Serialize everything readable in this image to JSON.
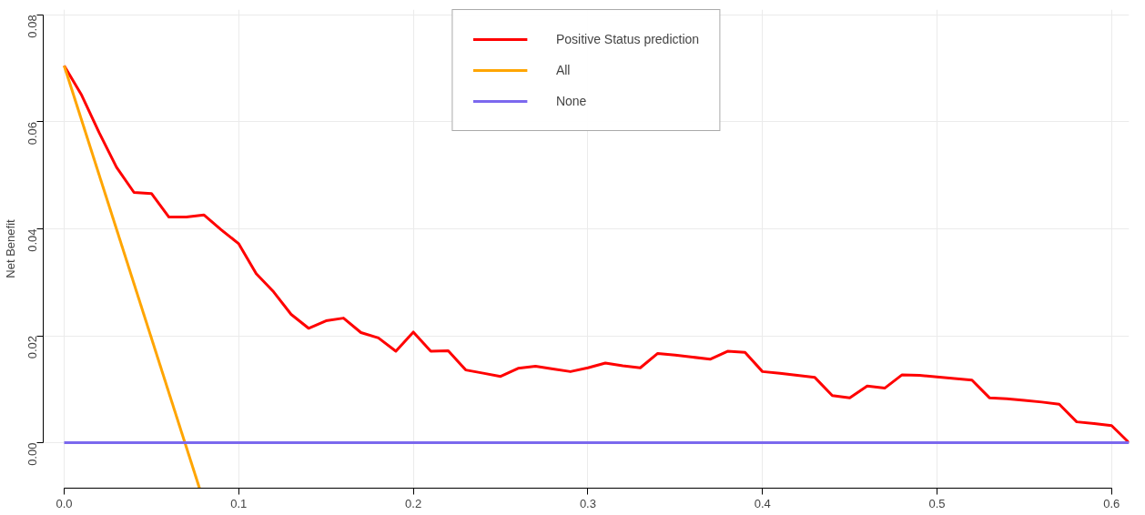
{
  "chart_data": {
    "type": "line",
    "ylabel": "Net Benefit",
    "xlim": [
      -0.012,
      0.61
    ],
    "ylim": [
      -0.0085,
      0.081
    ],
    "xticks": [
      {
        "value": 0,
        "label": "0.0"
      },
      0.1,
      0.2,
      0.3,
      0.4,
      0.5,
      0.6
    ],
    "yticks": [
      {
        "value": 0,
        "label": "0.00"
      },
      0.02,
      0.04,
      0.06,
      0.08
    ],
    "grid": true,
    "legend": "top",
    "line_style": "solid",
    "marker": "none",
    "series": [
      {
        "name": "Positive Status prediction",
        "color": "#ff0000",
        "x": [
          0,
          0.01,
          0.02,
          0.03,
          0.04,
          0.05,
          0.06,
          0.07,
          0.08,
          0.09,
          0.1,
          0.11,
          0.12,
          0.13,
          0.14,
          0.15,
          0.16,
          0.17,
          0.18,
          0.19,
          0.2,
          0.21,
          0.22,
          0.23,
          0.24,
          0.25,
          0.26,
          0.27,
          0.28,
          0.29,
          0.3,
          0.31,
          0.32,
          0.33,
          0.34,
          0.35,
          0.36,
          0.37,
          0.38,
          0.39,
          0.4,
          0.41,
          0.42,
          0.43,
          0.44,
          0.45,
          0.46,
          0.47,
          0.48,
          0.49,
          0.5,
          0.51,
          0.52,
          0.53,
          0.54,
          0.55,
          0.56,
          0.57,
          0.58,
          0.59,
          0.6,
          0.61
        ],
        "values": [
          0.0705,
          0.065,
          0.058,
          0.0515,
          0.0468,
          0.0466,
          0.0422,
          0.0422,
          0.0426,
          0.0398,
          0.0372,
          0.0316,
          0.0282,
          0.024,
          0.0214,
          0.0228,
          0.0233,
          0.0206,
          0.0196,
          0.0171,
          0.0207,
          0.0171,
          0.0172,
          0.0136,
          0.013,
          0.0124,
          0.0139,
          0.0143,
          0.0138,
          0.0133,
          0.014,
          0.0149,
          0.0144,
          0.014,
          0.0167,
          0.0164,
          0.016,
          0.0156,
          0.0171,
          0.0169,
          0.0133,
          0.013,
          0.0126,
          0.0122,
          0.0088,
          0.0084,
          0.0106,
          0.0102,
          0.0127,
          0.0126,
          0.0123,
          0.012,
          0.0117,
          0.0084,
          0.0082,
          0.0079,
          0.0076,
          0.0072,
          0.0039,
          0.0036,
          0.0032,
          0.0
        ]
      },
      {
        "name": "All",
        "color": "#ffa500",
        "x": [
          0,
          0.0775
        ],
        "values": [
          0.0705,
          -0.0085
        ]
      },
      {
        "name": "None",
        "color": "#7b68ee",
        "x": [
          0,
          0.61
        ],
        "values": [
          0,
          0
        ]
      }
    ]
  }
}
